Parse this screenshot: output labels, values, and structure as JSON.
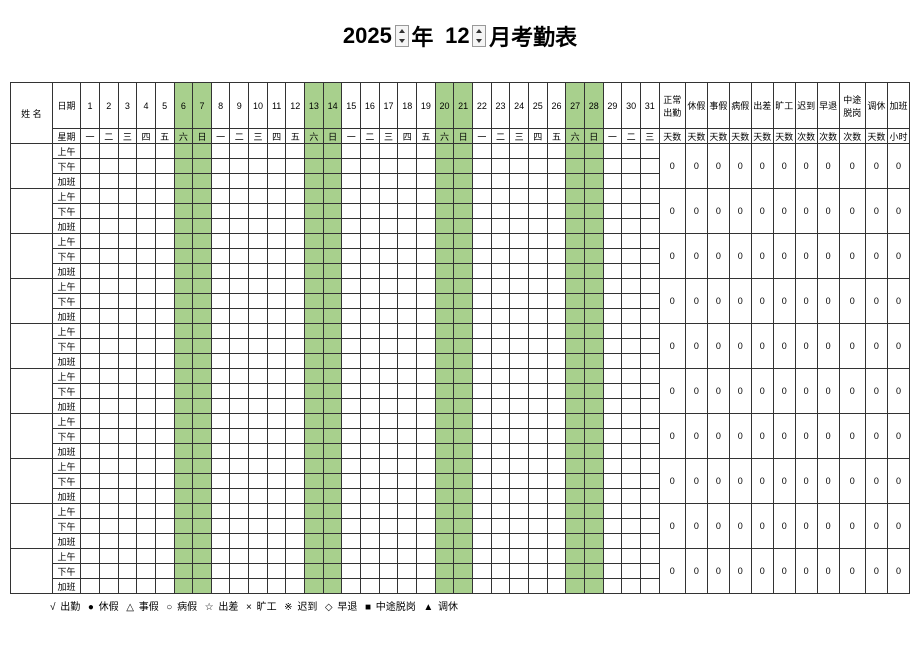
{
  "title": {
    "year": "2025",
    "yearLabel": "年",
    "month": "12",
    "monthLabel": "月考勤表"
  },
  "headers": {
    "name": "姓 名",
    "date": "日期",
    "weekday": "星期",
    "summary": [
      "正常出勤",
      "休假",
      "事假",
      "病假",
      "出差",
      "旷工",
      "迟到",
      "早退",
      "中途脱岗",
      "调休",
      "加班"
    ],
    "units": [
      "天数",
      "天数",
      "天数",
      "天数",
      "天数",
      "天数",
      "次数",
      "次数",
      "次数",
      "天数",
      "小时"
    ]
  },
  "days": [
    1,
    2,
    3,
    4,
    5,
    6,
    7,
    8,
    9,
    10,
    11,
    12,
    13,
    14,
    15,
    16,
    17,
    18,
    19,
    20,
    21,
    22,
    23,
    24,
    25,
    26,
    27,
    28,
    29,
    30,
    31
  ],
  "weekdays": [
    "一",
    "二",
    "三",
    "四",
    "五",
    "六",
    "日",
    "一",
    "二",
    "三",
    "四",
    "五",
    "六",
    "日",
    "一",
    "二",
    "三",
    "四",
    "五",
    "六",
    "日",
    "一",
    "二",
    "三",
    "四",
    "五",
    "六",
    "日",
    "一",
    "二",
    "三"
  ],
  "weekendIdx": [
    5,
    6,
    12,
    13,
    19,
    20,
    26,
    27
  ],
  "periods": [
    "上午",
    "下午",
    "加班"
  ],
  "employees": 10,
  "summaryZero": "0",
  "legend": [
    {
      "sym": "√",
      "label": "出勤"
    },
    {
      "sym": "●",
      "label": "休假"
    },
    {
      "sym": "△",
      "label": "事假"
    },
    {
      "sym": "○",
      "label": "病假"
    },
    {
      "sym": "☆",
      "label": "出差"
    },
    {
      "sym": "×",
      "label": "旷工"
    },
    {
      "sym": "※",
      "label": "迟到"
    },
    {
      "sym": "◇",
      "label": "早退"
    },
    {
      "sym": "■",
      "label": "中途脱岗"
    },
    {
      "sym": "▲",
      "label": "调休"
    }
  ],
  "colors": {
    "weekend": "#a8d08d",
    "border": "#333333",
    "bg": "#ffffff"
  }
}
